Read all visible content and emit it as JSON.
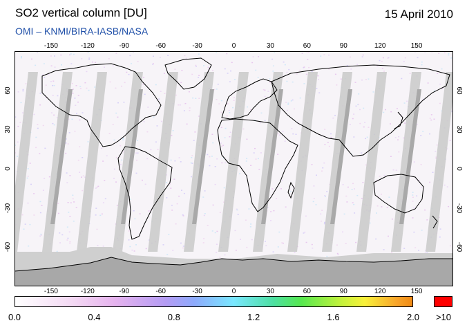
{
  "header": {
    "title": "SO2 vertical column [DU]",
    "date": "15 April 2010",
    "credit": "OMI  –  KNMI/BIRA-IASB/NASA"
  },
  "map": {
    "longitude_ticks": [
      "-150",
      "-120",
      "-90",
      "-60",
      "-30",
      "0",
      "30",
      "60",
      "90",
      "120",
      "150"
    ],
    "latitude_ticks": [
      "60",
      "30",
      "0",
      "-30",
      "-60"
    ],
    "projection": "equirectangular",
    "orbit_swath_gap_color": "#c8c8c8",
    "land_outline_color": "#000000",
    "polar_night_color": "#b4b4b4"
  },
  "colorbar": {
    "labels": [
      "0.0",
      "0.4",
      "0.8",
      "1.2",
      "1.6",
      "2.0"
    ],
    "overflow_label": ">10",
    "overflow_color": "#ff0000",
    "min": 0.0,
    "max": 2.0
  }
}
